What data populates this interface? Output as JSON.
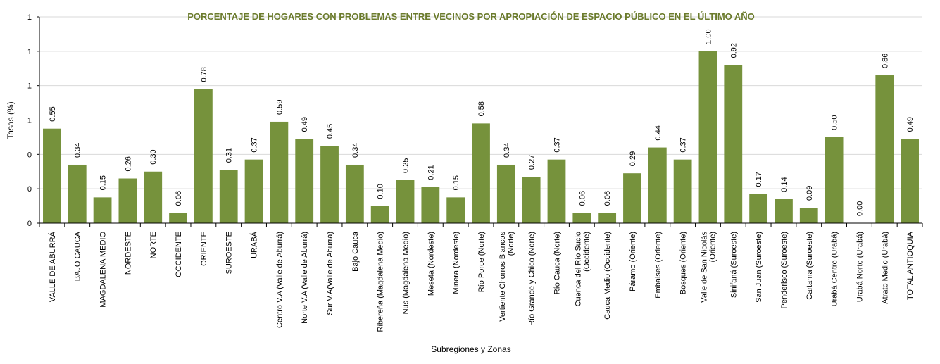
{
  "chart_data": {
    "type": "bar",
    "title": "PORCENTAJE DE HOGARES CON PROBLEMAS ENTRE VECINOS POR APROPIACIÓN DE ESPACIO PÚBLICO EN EL ÚLTIMO AÑO",
    "xlabel": "Subregiones y Zonas",
    "ylabel": "Tasas (%)",
    "ylim": [
      0,
      1.2
    ],
    "yticks": [
      0,
      0.2,
      0.4,
      0.6,
      0.8,
      1.0,
      1.2
    ],
    "ytick_labels": [
      "0",
      "0",
      "0",
      "1",
      "1",
      "1",
      "1"
    ],
    "grid": true,
    "bar_color": "#76923c",
    "title_color": "#6b7b2c",
    "categories": [
      [
        "VALLE DE ABURRÁ"
      ],
      [
        "BAJO CAUCA"
      ],
      [
        "MAGDALENA MEDIO"
      ],
      [
        "NORDESTE"
      ],
      [
        "NORTE"
      ],
      [
        "OCCIDENTE"
      ],
      [
        "ORIENTE"
      ],
      [
        "SUROESTE"
      ],
      [
        "URABÁ"
      ],
      [
        "Centro V.A (Valle de Aburrá)"
      ],
      [
        "Norte V.A (Valle de Aburrá)"
      ],
      [
        "Sur V.A(Valle de Aburrá)"
      ],
      [
        "Bajo Cauca"
      ],
      [
        "Ribereña  (Magdalena Medio)"
      ],
      [
        "Nus  (Magdalena Medio)"
      ],
      [
        "Meseta  (Nordeste)"
      ],
      [
        "Minera  (Nordeste)"
      ],
      [
        "Río Porce    (Norte)"
      ],
      [
        "Vertiente Chorros Blancos",
        "(Norte)"
      ],
      [
        "Río Grande y Chico  (Norte)"
      ],
      [
        "Río Cauca  (Norte)"
      ],
      [
        "Cuenca del Río Sucio",
        "(Occidente)"
      ],
      [
        "Cauca Medio  (Occidente)"
      ],
      [
        "Páramo   (Oriente)"
      ],
      [
        "Embalses  (Oriente)"
      ],
      [
        "Bosques  (Oriente)"
      ],
      [
        "Valle de San Nicolás",
        "(Oriente)"
      ],
      [
        "Sinifaná  (Suroeste)"
      ],
      [
        "San Juan  (Suroeste)"
      ],
      [
        "Penderisco  (Suroeste)"
      ],
      [
        "Cartama  (Suroeste)"
      ],
      [
        "Urabá Centro  (Urabá)"
      ],
      [
        "Urabá Norte  (Urabá)"
      ],
      [
        "Atrato Medio  (Urabá)"
      ],
      [
        "TOTAL ANTIOQUIA"
      ]
    ],
    "values": [
      0.55,
      0.34,
      0.15,
      0.26,
      0.3,
      0.06,
      0.78,
      0.31,
      0.37,
      0.59,
      0.49,
      0.45,
      0.34,
      0.1,
      0.25,
      0.21,
      0.15,
      0.58,
      0.34,
      0.27,
      0.37,
      0.06,
      0.06,
      0.29,
      0.44,
      0.37,
      1.0,
      0.92,
      0.17,
      0.14,
      0.09,
      0.5,
      0.0,
      0.86,
      0.49
    ],
    "value_labels": [
      "0.55",
      "0.34",
      "0.15",
      "0.26",
      "0.30",
      "0.06",
      "0.78",
      "0.31",
      "0.37",
      "0.59",
      "0.49",
      "0.45",
      "0.34",
      "0.10",
      "0.25",
      "0.21",
      "0.15",
      "0.58",
      "0.34",
      "0.27",
      "0.37",
      "0.06",
      "0.06",
      "0.29",
      "0.44",
      "0.37",
      "1.00",
      "0.92",
      "0.17",
      "0.14",
      "0.09",
      "0.50",
      "0.00",
      "0.86",
      "0.49"
    ]
  }
}
